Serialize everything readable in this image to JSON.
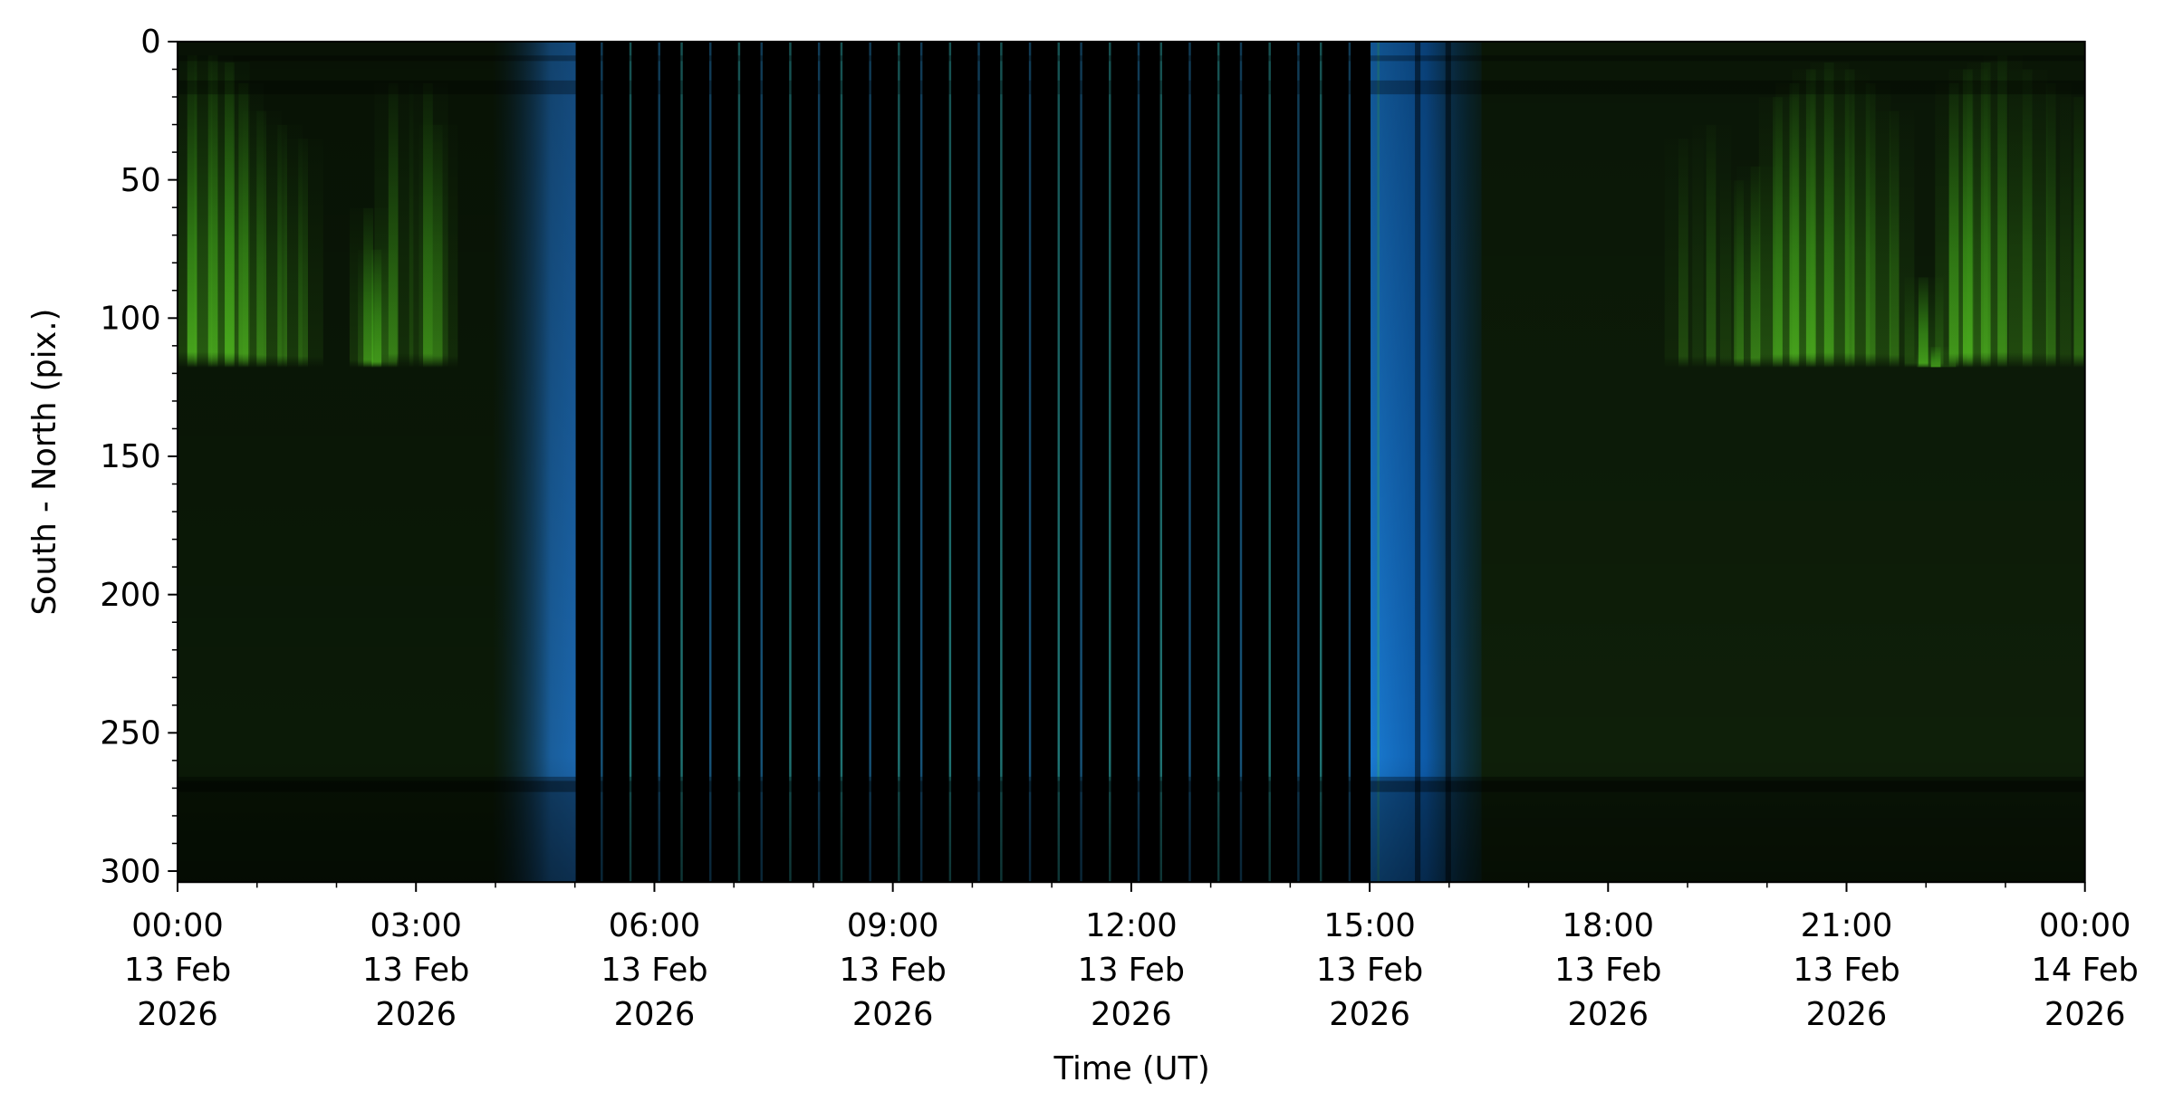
{
  "chart_data": {
    "type": "image",
    "xlabel": "Time (UT)",
    "ylabel": "South - North (pix.)",
    "xlim": [
      0,
      24
    ],
    "xticks": [
      {
        "value": 0,
        "label": [
          "00:00",
          "13 Feb",
          "2026"
        ]
      },
      {
        "value": 3,
        "label": [
          "03:00",
          "13 Feb",
          "2026"
        ]
      },
      {
        "value": 6,
        "label": [
          "06:00",
          "13 Feb",
          "2026"
        ]
      },
      {
        "value": 9,
        "label": [
          "09:00",
          "13 Feb",
          "2026"
        ]
      },
      {
        "value": 12,
        "label": [
          "12:00",
          "13 Feb",
          "2026"
        ]
      },
      {
        "value": 15,
        "label": [
          "15:00",
          "13 Feb",
          "2026"
        ]
      },
      {
        "value": 18,
        "label": [
          "18:00",
          "13 Feb",
          "2026"
        ]
      },
      {
        "value": 21,
        "label": [
          "21:00",
          "13 Feb",
          "2026"
        ]
      },
      {
        "value": 24,
        "label": [
          "00:00",
          "14 Feb",
          "2026"
        ]
      }
    ],
    "xminorticks": [
      1,
      2,
      4,
      5,
      7,
      8,
      10,
      11,
      13,
      14,
      16,
      17,
      19,
      20,
      22,
      23
    ],
    "ylim": [
      304,
      0
    ],
    "yticks": [
      0,
      50,
      100,
      150,
      200,
      250,
      300
    ],
    "yminorticks": [
      10,
      20,
      30,
      40,
      60,
      70,
      80,
      90,
      110,
      120,
      130,
      140,
      160,
      170,
      180,
      190,
      210,
      220,
      230,
      240,
      260,
      270,
      280,
      290
    ]
  }
}
